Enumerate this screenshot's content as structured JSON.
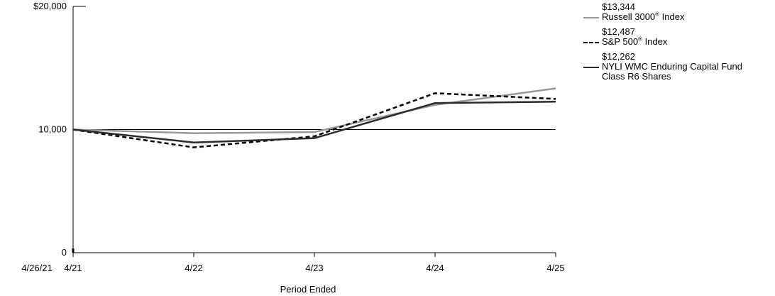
{
  "chart_data": {
    "type": "line",
    "xlabel": "Period Ended",
    "ylabel": "",
    "ylim": [
      0,
      20000
    ],
    "y_ticks": [
      {
        "value": 0,
        "label": "0"
      },
      {
        "value": 10000,
        "label": "10,000"
      },
      {
        "value": 20000,
        "label": "$20,000"
      }
    ],
    "x": [
      "4/21",
      "4/22",
      "4/23",
      "4/24",
      "4/25"
    ],
    "start_label": "4/26/21",
    "reference_value": 10000,
    "series": [
      {
        "name": "Russell 3000® Index",
        "name_parts": [
          "Russell 3000",
          "®",
          " Index"
        ],
        "end_value_label": "$13,344",
        "color": "#999999",
        "dash": "solid",
        "values": [
          10000,
          9700,
          9800,
          12000,
          13344
        ]
      },
      {
        "name": "S&P 500® Index",
        "name_parts": [
          "S&P 500",
          "®",
          " Index"
        ],
        "end_value_label": "$12,487",
        "color": "#000000",
        "dash": "dashed",
        "values": [
          10000,
          8550,
          9450,
          12950,
          12487
        ]
      },
      {
        "name": "NYLI WMC Enduring Capital Fund Class R6 Shares",
        "name_lines": [
          "NYLI WMC Enduring Capital Fund",
          "Class R6 Shares"
        ],
        "end_value_label": "$12,262",
        "color": "#2b2b2b",
        "dash": "solid",
        "values": [
          10000,
          8950,
          9300,
          12150,
          12262
        ]
      }
    ]
  }
}
